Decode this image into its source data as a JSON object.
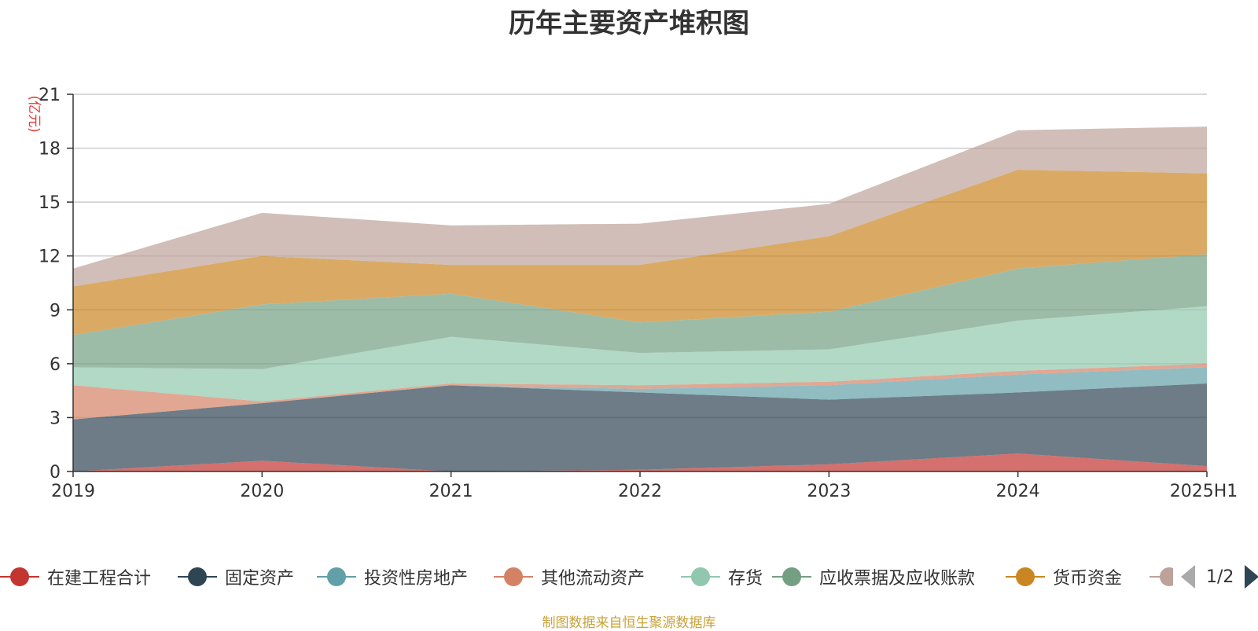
{
  "chart_data": {
    "type": "area",
    "stacked": true,
    "title": "历年主要资产堆积图",
    "ylabel": "(亿元)",
    "xlabel": "",
    "categories": [
      "2019",
      "2020",
      "2021",
      "2022",
      "2023",
      "2024",
      "2025H1"
    ],
    "ylim": [
      0,
      21
    ],
    "yticks": [
      0,
      3,
      6,
      9,
      12,
      15,
      18,
      21
    ],
    "grid": true,
    "legend_position": "bottom",
    "series": [
      {
        "name": "在建工程合计",
        "color": "#c23531",
        "values": [
          0.0,
          0.6,
          0.0,
          0.1,
          0.4,
          1.0,
          0.3
        ]
      },
      {
        "name": "固定资产",
        "color": "#2f4554",
        "values": [
          2.9,
          3.2,
          4.8,
          4.3,
          3.6,
          3.4,
          4.6
        ]
      },
      {
        "name": "投资性房地产",
        "color": "#61a0a8",
        "values": [
          0.0,
          0.0,
          0.0,
          0.2,
          0.8,
          1.0,
          0.9
        ]
      },
      {
        "name": "其他流动资产",
        "color": "#d48265",
        "values": [
          1.9,
          0.1,
          0.1,
          0.2,
          0.2,
          0.2,
          0.2
        ]
      },
      {
        "name": "存货",
        "color": "#91c7ae",
        "values": [
          1.0,
          1.8,
          2.6,
          1.8,
          1.8,
          2.8,
          3.2
        ]
      },
      {
        "name": "应收票据及应收账款",
        "color": "#749f83",
        "values": [
          1.8,
          3.6,
          2.4,
          1.7,
          2.1,
          2.9,
          2.9
        ]
      },
      {
        "name": "货币资金",
        "color": "#ca8622",
        "values": [
          2.7,
          2.7,
          1.6,
          3.2,
          4.2,
          5.5,
          4.5
        ]
      },
      {
        "name": "",
        "color": "#bda29a",
        "values": [
          1.0,
          2.4,
          2.2,
          2.3,
          1.8,
          2.2,
          2.6
        ]
      }
    ]
  },
  "legend": {
    "pager_text": "1/2"
  },
  "source_note": "制图数据来自恒生聚源数据库"
}
